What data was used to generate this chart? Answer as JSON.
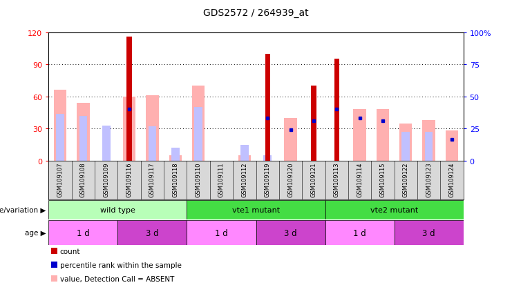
{
  "title": "GDS2572 / 264939_at",
  "samples": [
    "GSM109107",
    "GSM109108",
    "GSM109109",
    "GSM109116",
    "GSM109117",
    "GSM109118",
    "GSM109110",
    "GSM109111",
    "GSM109112",
    "GSM109119",
    "GSM109120",
    "GSM109121",
    "GSM109113",
    "GSM109114",
    "GSM109115",
    "GSM109122",
    "GSM109123",
    "GSM109124"
  ],
  "count": [
    0,
    0,
    0,
    116,
    0,
    0,
    0,
    0,
    0,
    100,
    0,
    70,
    95,
    0,
    0,
    0,
    0,
    0
  ],
  "percentile_rank": [
    0,
    0,
    0,
    48,
    0,
    0,
    0,
    0,
    0,
    40,
    29,
    37,
    48,
    40,
    37,
    0,
    0,
    20
  ],
  "value_absent": [
    66,
    54,
    0,
    60,
    61,
    5,
    70,
    0,
    5,
    0,
    40,
    0,
    0,
    48,
    48,
    35,
    38,
    28
  ],
  "rank_absent": [
    44,
    42,
    33,
    0,
    32,
    12,
    50,
    0,
    15,
    5,
    0,
    0,
    0,
    0,
    0,
    27,
    27,
    0
  ],
  "has_count": [
    false,
    false,
    false,
    true,
    false,
    false,
    false,
    false,
    false,
    true,
    true,
    true,
    true,
    true,
    true,
    false,
    false,
    false
  ],
  "has_percentile": [
    false,
    false,
    false,
    true,
    false,
    false,
    false,
    false,
    false,
    true,
    true,
    true,
    true,
    true,
    true,
    false,
    false,
    true
  ],
  "has_value_absent": [
    true,
    true,
    false,
    true,
    true,
    true,
    true,
    false,
    true,
    false,
    true,
    false,
    false,
    true,
    true,
    true,
    true,
    true
  ],
  "has_rank_absent": [
    true,
    true,
    true,
    false,
    true,
    true,
    true,
    false,
    true,
    true,
    false,
    false,
    false,
    false,
    false,
    true,
    true,
    false
  ],
  "ylim_left": [
    0,
    120
  ],
  "yticks_left": [
    0,
    30,
    60,
    90,
    120
  ],
  "ylim_right": [
    0,
    100
  ],
  "yticks_right": [
    0,
    25,
    50,
    75,
    100
  ],
  "color_count": "#cc0000",
  "color_percentile": "#0000cc",
  "color_value_absent": "#ffb0b0",
  "color_rank_absent": "#c0c0ff",
  "group_labels": [
    "wild type",
    "vte1 mutant",
    "vte2 mutant"
  ],
  "group_starts": [
    0,
    6,
    12
  ],
  "group_ends": [
    6,
    12,
    18
  ],
  "group_colors": [
    "#b8ffb8",
    "#44dd44",
    "#44dd44"
  ],
  "age_labels": [
    "1 d",
    "3 d",
    "1 d",
    "3 d",
    "1 d",
    "3 d"
  ],
  "age_starts": [
    0,
    3,
    6,
    9,
    12,
    15
  ],
  "age_ends": [
    3,
    6,
    9,
    12,
    15,
    18
  ],
  "age_colors": [
    "#ff88ff",
    "#cc44cc",
    "#ff88ff",
    "#cc44cc",
    "#ff88ff",
    "#cc44cc"
  ]
}
